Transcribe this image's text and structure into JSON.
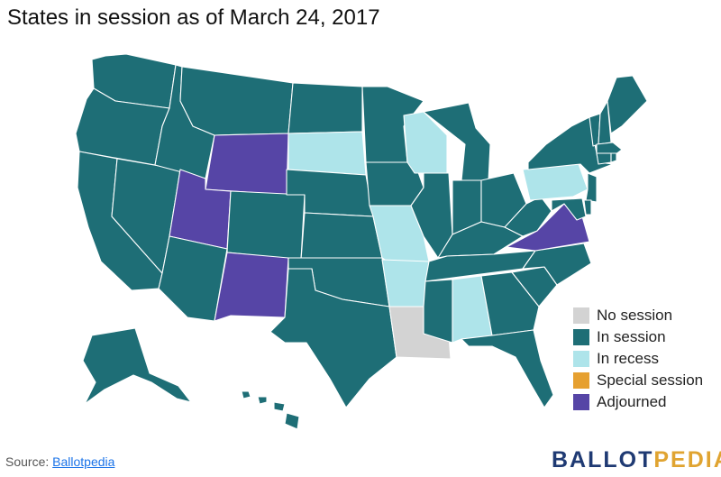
{
  "title": "States in session as of March 24, 2017",
  "legend": [
    {
      "key": "none",
      "label": "No session",
      "color": "#d3d3d3"
    },
    {
      "key": "in",
      "label": "In session",
      "color": "#1e6e76"
    },
    {
      "key": "recess",
      "label": "In recess",
      "color": "#aee4ea"
    },
    {
      "key": "special",
      "label": "Special session",
      "color": "#e6a030"
    },
    {
      "key": "adjourned",
      "label": "Adjourned",
      "color": "#5645a6"
    }
  ],
  "source": {
    "prefix": "Source: ",
    "link_text": "Ballotpedia"
  },
  "logo": {
    "part1": "BALLOT",
    "part2": "PEDIA"
  },
  "states": [
    {
      "code": "WA",
      "status": "in"
    },
    {
      "code": "OR",
      "status": "in"
    },
    {
      "code": "CA",
      "status": "in"
    },
    {
      "code": "NV",
      "status": "in"
    },
    {
      "code": "ID",
      "status": "in"
    },
    {
      "code": "MT",
      "status": "in"
    },
    {
      "code": "WY",
      "status": "adjourned"
    },
    {
      "code": "UT",
      "status": "adjourned"
    },
    {
      "code": "AZ",
      "status": "in"
    },
    {
      "code": "CO",
      "status": "in"
    },
    {
      "code": "NM",
      "status": "adjourned"
    },
    {
      "code": "ND",
      "status": "in"
    },
    {
      "code": "SD",
      "status": "recess"
    },
    {
      "code": "NE",
      "status": "in"
    },
    {
      "code": "KS",
      "status": "in"
    },
    {
      "code": "OK",
      "status": "in"
    },
    {
      "code": "TX",
      "status": "in"
    },
    {
      "code": "MN",
      "status": "in"
    },
    {
      "code": "IA",
      "status": "in"
    },
    {
      "code": "MO",
      "status": "recess"
    },
    {
      "code": "AR",
      "status": "recess"
    },
    {
      "code": "LA",
      "status": "none"
    },
    {
      "code": "WI",
      "status": "recess"
    },
    {
      "code": "IL",
      "status": "in"
    },
    {
      "code": "MI",
      "status": "in"
    },
    {
      "code": "IN",
      "status": "in"
    },
    {
      "code": "OH",
      "status": "in"
    },
    {
      "code": "KY",
      "status": "in"
    },
    {
      "code": "TN",
      "status": "in"
    },
    {
      "code": "MS",
      "status": "in"
    },
    {
      "code": "AL",
      "status": "recess"
    },
    {
      "code": "GA",
      "status": "in"
    },
    {
      "code": "FL",
      "status": "in"
    },
    {
      "code": "SC",
      "status": "in"
    },
    {
      "code": "NC",
      "status": "in"
    },
    {
      "code": "VA",
      "status": "adjourned"
    },
    {
      "code": "WV",
      "status": "in"
    },
    {
      "code": "PA",
      "status": "recess"
    },
    {
      "code": "NY",
      "status": "in"
    },
    {
      "code": "VT",
      "status": "in"
    },
    {
      "code": "NH",
      "status": "in"
    },
    {
      "code": "ME",
      "status": "in"
    },
    {
      "code": "MA",
      "status": "in"
    },
    {
      "code": "CT",
      "status": "in"
    },
    {
      "code": "RI",
      "status": "in"
    },
    {
      "code": "NJ",
      "status": "in"
    },
    {
      "code": "DE",
      "status": "in"
    },
    {
      "code": "MD",
      "status": "in"
    },
    {
      "code": "AK",
      "status": "in"
    },
    {
      "code": "HI",
      "status": "in"
    }
  ]
}
